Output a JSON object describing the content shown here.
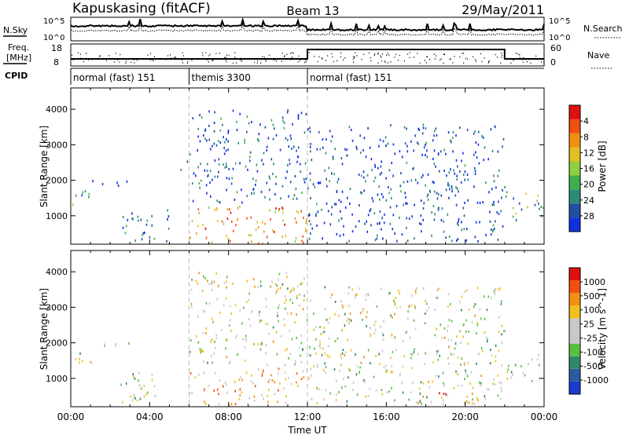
{
  "header": {
    "station": "Kapuskasing (fitACF)",
    "beam": "Beam 13",
    "date": "29/May/2011"
  },
  "top_panels": {
    "nsky_label": "N.Sky",
    "nsearch_label": "N.Search",
    "noise_ticks": [
      "10^5",
      "10^0"
    ],
    "freq_label_1": "Freq.",
    "freq_label_2": "[MHz]",
    "freq_ticks": [
      "18",
      "8"
    ],
    "nave_label": "Nave",
    "nave_ticks": [
      "60",
      "0"
    ],
    "cpid_label": "CPID",
    "cpid_segments": [
      {
        "start": 0,
        "end": 6,
        "label": "normal (fast) 151"
      },
      {
        "start": 6,
        "end": 12,
        "label": "themis 3300"
      },
      {
        "start": 12,
        "end": 24,
        "label": "normal (fast) 151"
      }
    ]
  },
  "chart_data": [
    {
      "type": "heatmap",
      "name": "power",
      "ylabel": "Slant Range [km]",
      "ylim": [
        200,
        4600
      ],
      "yticks": [
        "1000",
        "2000",
        "3000",
        "4000"
      ],
      "xlim": [
        0,
        24
      ],
      "colorbar_label": "Power [dB]",
      "colorbar_ticks": [
        "4",
        "8",
        "12",
        "16",
        "20",
        "24",
        "28"
      ],
      "colorbar_colors": [
        "#1030e0",
        "#2050a0",
        "#2e8a78",
        "#3cb04a",
        "#8fd040",
        "#e0c020",
        "#f09010",
        "#f05010",
        "#e01010"
      ],
      "regions": [
        {
          "t0": 0.05,
          "t1": 1.2,
          "r0": 1300,
          "r1": 1800,
          "level": 0.3
        },
        {
          "t0": 1.0,
          "t1": 3.0,
          "r0": 1850,
          "r1": 2050,
          "level": 0.05
        },
        {
          "t0": 2.5,
          "t1": 5.0,
          "r0": 300,
          "r1": 1200,
          "level": 0.2
        },
        {
          "t0": 5.5,
          "t1": 6.1,
          "r0": 2300,
          "r1": 2600,
          "level": 0.1
        },
        {
          "t0": 6.0,
          "t1": 12.0,
          "r0": 250,
          "r1": 1300,
          "level": 0.7
        },
        {
          "t0": 6.0,
          "t1": 12.0,
          "r0": 1400,
          "r1": 4000,
          "level": 0.15
        },
        {
          "t0": 12.0,
          "t1": 22.0,
          "r0": 300,
          "r1": 3600,
          "level": 0.1
        },
        {
          "t0": 18.5,
          "t1": 19.3,
          "r0": 350,
          "r1": 650,
          "level": 0.45
        },
        {
          "t0": 22.0,
          "t1": 24.0,
          "r0": 900,
          "r1": 1700,
          "level": 0.4
        }
      ]
    },
    {
      "type": "heatmap",
      "name": "velocity",
      "ylabel": "Slant Range [km]",
      "ylim": [
        200,
        4600
      ],
      "yticks": [
        "1000",
        "2000",
        "3000",
        "4000"
      ],
      "xlim": [
        0,
        24
      ],
      "xticks": [
        "00:00",
        "04:00",
        "08:00",
        "12:00",
        "16:00",
        "20:00",
        "00:00"
      ],
      "xlabel": "Time UT",
      "colorbar_label": "Velocity [m s^-1]",
      "colorbar_ticks": [
        "1000",
        "500",
        "100",
        "25",
        "-25",
        "-100",
        "-500",
        "-1000"
      ],
      "colorbar_colors": [
        "#1c3ad0",
        "#2a5aa0",
        "#2e8a6a",
        "#58c040",
        "#c8c8c8",
        "#c8c8c8",
        "#f0c020",
        "#f09010",
        "#f05010",
        "#e01010"
      ],
      "regions": [
        {
          "t0": 0.05,
          "t1": 1.2,
          "r0": 1300,
          "r1": 1800,
          "level": 0.5
        },
        {
          "t0": 1.0,
          "t1": 3.0,
          "r0": 1850,
          "r1": 2050,
          "level": 0.5
        },
        {
          "t0": 2.5,
          "t1": 5.0,
          "r0": 300,
          "r1": 1200,
          "level": 0.45
        },
        {
          "t0": 6.0,
          "t1": 12.0,
          "r0": 250,
          "r1": 1300,
          "level": 0.65
        },
        {
          "t0": 6.0,
          "t1": 12.0,
          "r0": 1400,
          "r1": 4000,
          "level": 0.5
        },
        {
          "t0": 12.0,
          "t1": 22.0,
          "r0": 300,
          "r1": 3600,
          "level": 0.5
        },
        {
          "t0": 18.5,
          "t1": 19.3,
          "r0": 350,
          "r1": 650,
          "level": 0.8
        },
        {
          "t0": 22.0,
          "t1": 24.0,
          "r0": 900,
          "r1": 1700,
          "level": 0.5
        }
      ]
    }
  ]
}
